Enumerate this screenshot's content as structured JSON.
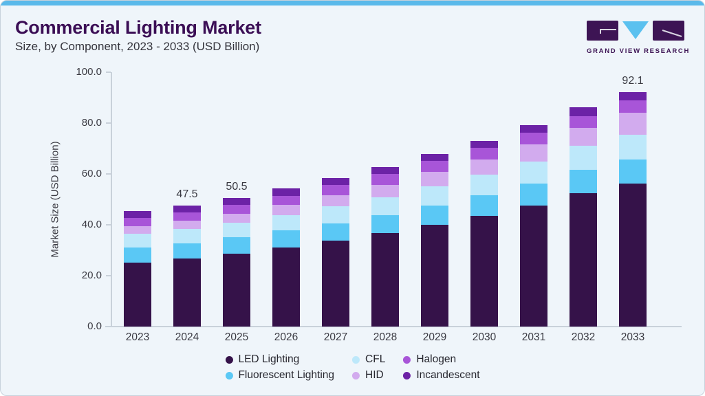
{
  "header": {
    "title": "Commercial Lighting Market",
    "subtitle": "Size, by Component, 2023 - 2033 (USD Billion)"
  },
  "logo": {
    "text": "GRAND VIEW RESEARCH",
    "brand_purple": "#3d1454",
    "brand_blue": "#5bc1ef"
  },
  "theme": {
    "card_background": "#eff5fa",
    "accent_bar": "#5ab9ea",
    "title_color": "#3b0e55",
    "axis_text_color": "#3a3a42",
    "axis_line_color": "#c9d1da"
  },
  "chart_data": {
    "type": "bar",
    "stacked": true,
    "title": "Commercial Lighting Market Size, by Component, 2023 - 2033 (USD Billion)",
    "xlabel": "",
    "ylabel": "Market Size (USD Billion)",
    "ylim": [
      0,
      100
    ],
    "yticks": [
      0,
      20,
      40,
      60,
      80,
      100
    ],
    "ytick_labels": [
      "0.0",
      "20.0",
      "40.0",
      "60.0",
      "80.0",
      "100.0"
    ],
    "grid": false,
    "legend_position": "bottom",
    "categories": [
      "2023",
      "2024",
      "2025",
      "2026",
      "2027",
      "2028",
      "2029",
      "2030",
      "2031",
      "2032",
      "2033"
    ],
    "series": [
      {
        "name": "LED Lighting",
        "color": "#351249",
        "values": [
          25.2,
          26.7,
          28.7,
          31.2,
          33.8,
          36.7,
          39.9,
          43.4,
          47.6,
          52.3,
          56.2
        ]
      },
      {
        "name": "Fluorescent Lighting",
        "color": "#5ac8f5",
        "values": [
          5.9,
          6.1,
          6.3,
          6.5,
          6.8,
          7.1,
          7.6,
          8.1,
          8.6,
          9.2,
          9.5
        ]
      },
      {
        "name": "CFL",
        "color": "#bde8fa",
        "values": [
          5.3,
          5.5,
          5.8,
          6.1,
          6.7,
          7.1,
          7.5,
          8.3,
          8.7,
          9.6,
          9.8
        ]
      },
      {
        "name": "HID",
        "color": "#d2abee",
        "values": [
          3.0,
          3.3,
          3.6,
          4.1,
          4.4,
          4.9,
          5.8,
          5.9,
          6.6,
          6.9,
          8.5
        ]
      },
      {
        "name": "Halogen",
        "color": "#a855d8",
        "values": [
          3.3,
          3.4,
          3.5,
          3.5,
          4.0,
          4.3,
          4.2,
          4.6,
          4.7,
          4.7,
          4.9
        ]
      },
      {
        "name": "Incandescent",
        "color": "#6c22a6",
        "values": [
          2.6,
          2.5,
          2.6,
          2.8,
          2.8,
          2.7,
          2.8,
          2.8,
          2.9,
          3.4,
          3.2
        ]
      }
    ],
    "total_labels": {
      "2024": "47.5",
      "2025": "50.5",
      "2033": "92.1"
    }
  }
}
